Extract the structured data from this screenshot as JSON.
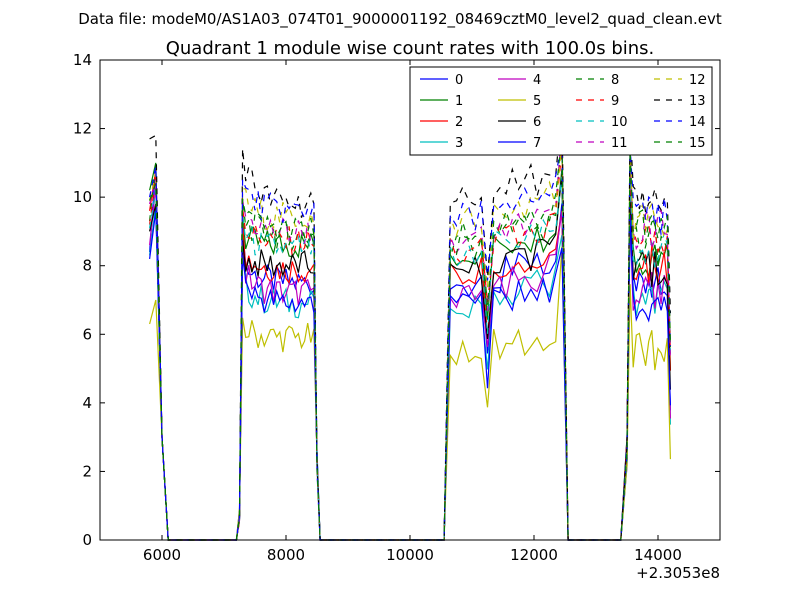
{
  "suptitle": "Data file: modeM0/AS1A03_074T01_9000001192_08469cztM0_level2_quad_clean.evt",
  "chart_data": {
    "type": "line",
    "title": "Quadrant 1 module wise count rates with 100.0s bins.",
    "xlabel": "",
    "ylabel": "",
    "offset_label": "+2.3053e8",
    "xlim": [
      5000,
      15000
    ],
    "ylim": [
      0,
      14
    ],
    "xticks": [
      6000,
      8000,
      10000,
      12000,
      14000
    ],
    "yticks": [
      0,
      2,
      4,
      6,
      8,
      10,
      12,
      14
    ],
    "grid": false,
    "legend": "top-right",
    "segments": [
      {
        "x": [
          5800,
          5900,
          6000,
          6100,
          6200,
          6300,
          6400,
          6500,
          6600,
          6700,
          6800,
          6900,
          7000,
          7100
        ]
      },
      {
        "x": [
          7200,
          7250,
          7300,
          7350,
          7400,
          7450,
          7500,
          7550,
          7600,
          7650,
          7700,
          7750,
          7800,
          7850,
          7900,
          7950,
          8000,
          8050,
          8100,
          8150,
          8200,
          8250,
          8300,
          8350,
          8400,
          8450,
          8500,
          8550
        ]
      },
      {
        "x": [
          8600,
          8800,
          9000,
          9200,
          9400,
          9600,
          9800,
          10000,
          10200,
          10400,
          10500
        ]
      },
      {
        "x": [
          10550,
          10650,
          10750,
          10850,
          10950,
          11050,
          11150,
          11250,
          11350,
          11450,
          11550,
          11650,
          11750,
          11850,
          11950,
          12050,
          12150,
          12250,
          12350,
          12450,
          12550
        ]
      },
      {
        "x": [
          12600,
          12800,
          13000,
          13200,
          13350
        ]
      },
      {
        "x": [
          13400,
          13500,
          13550,
          13600,
          13650,
          13700,
          13750,
          13800,
          13850,
          13900,
          13950,
          14000,
          14050,
          14100,
          14150,
          14200
        ]
      }
    ],
    "series": [
      {
        "name": "0",
        "color": "#0000ff",
        "style": "solid",
        "levels": [
          8.4,
          10.9,
          8.1,
          7.5,
          7.8,
          7.2,
          7.7
        ]
      },
      {
        "name": "1",
        "color": "#008000",
        "style": "solid",
        "levels": [
          10.2,
          11.0,
          8.8,
          8.6,
          8.5,
          8.0,
          8.3
        ]
      },
      {
        "name": "2",
        "color": "#ff0000",
        "style": "solid",
        "levels": [
          9.6,
          10.8,
          8.4,
          7.9,
          8.1,
          7.6,
          8.0
        ]
      },
      {
        "name": "3",
        "color": "#00bfbf",
        "style": "solid",
        "levels": [
          8.3,
          9.8,
          7.5,
          6.9,
          7.1,
          6.8,
          7.0
        ]
      },
      {
        "name": "4",
        "color": "#bf00bf",
        "style": "solid",
        "levels": [
          8.6,
          10.3,
          7.9,
          7.2,
          7.4,
          7.0,
          7.3
        ]
      },
      {
        "name": "5",
        "color": "#bfbf00",
        "style": "solid",
        "levels": [
          6.3,
          7.0,
          6.2,
          5.9,
          5.6,
          5.4,
          5.5
        ]
      },
      {
        "name": "6",
        "color": "#000000",
        "style": "solid",
        "levels": [
          9.0,
          9.8,
          8.2,
          8.0,
          8.0,
          7.6,
          7.8
        ]
      },
      {
        "name": "7",
        "color": "#0000ff",
        "style": "solid",
        "levels": [
          8.2,
          9.6,
          7.6,
          6.9,
          7.0,
          6.6,
          6.9
        ]
      },
      {
        "name": "8",
        "color": "#008000",
        "style": "dashed",
        "levels": [
          9.3,
          11.0,
          9.4,
          8.9,
          8.9,
          8.5,
          8.7
        ]
      },
      {
        "name": "9",
        "color": "#ff0000",
        "style": "dashed",
        "levels": [
          9.2,
          10.6,
          9.2,
          8.7,
          8.7,
          8.3,
          8.6
        ]
      },
      {
        "name": "10",
        "color": "#00bfbf",
        "style": "dashed",
        "levels": [
          9.1,
          10.2,
          9.0,
          8.5,
          8.6,
          8.2,
          8.4
        ]
      },
      {
        "name": "11",
        "color": "#bf00bf",
        "style": "dashed",
        "levels": [
          9.8,
          10.5,
          9.6,
          9.0,
          9.1,
          8.7,
          9.0
        ]
      },
      {
        "name": "12",
        "color": "#bfbf00",
        "style": "dashed",
        "levels": [
          9.9,
          10.7,
          10.0,
          9.4,
          9.6,
          9.0,
          9.3
        ]
      },
      {
        "name": "13",
        "color": "#000000",
        "style": "dashed",
        "levels": [
          11.7,
          11.8,
          11.2,
          9.8,
          10.2,
          9.8,
          9.9
        ]
      },
      {
        "name": "14",
        "color": "#0000ff",
        "style": "dashed",
        "levels": [
          10.0,
          10.9,
          10.3,
          9.6,
          9.8,
          9.2,
          9.5
        ]
      },
      {
        "name": "15",
        "color": "#008000",
        "style": "dashed",
        "levels": [
          9.9,
          10.4,
          9.7,
          9.0,
          9.2,
          8.7,
          9.0
        ]
      }
    ]
  }
}
